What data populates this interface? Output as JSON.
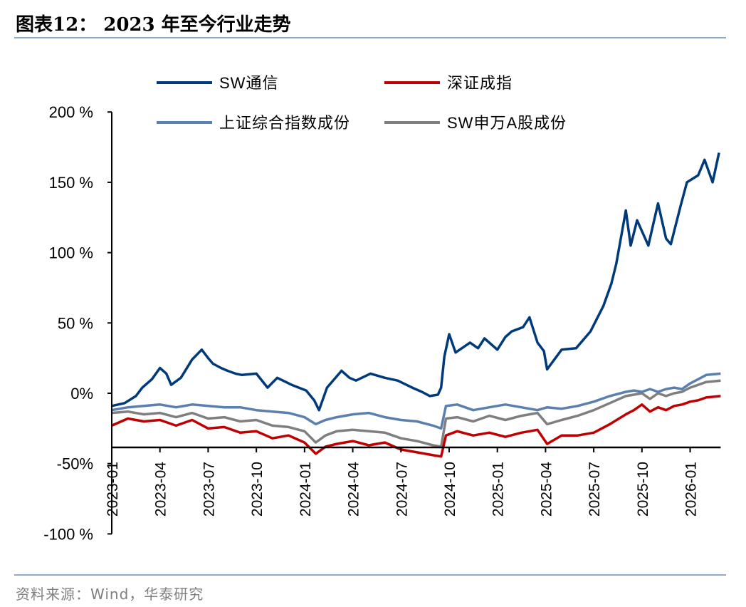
{
  "header": {
    "title": "图表12：  2023 年至今行业走势"
  },
  "footer": {
    "source": "资料来源：Wind，华泰研究"
  },
  "chart_data": {
    "type": "line",
    "title": "2023 年至今行业走势",
    "xlabel": "",
    "ylabel": "",
    "ylim": [
      -100,
      200
    ],
    "x_axis_crosses": -38.5,
    "yticks": [
      200,
      150,
      100,
      50,
      0,
      -50,
      -100
    ],
    "ytick_labels": [
      "200 %",
      "150 %",
      "100 %",
      "50 %",
      "0%",
      "-50%",
      "-100 %"
    ],
    "xticks": [
      0,
      3,
      6,
      9,
      12,
      15,
      18,
      21,
      24,
      27,
      30,
      33,
      36
    ],
    "xtick_labels": [
      "2023-01",
      "2023-04",
      "2023-07",
      "2023-10",
      "2024-01",
      "2024-04",
      "2024-07",
      "2024-10",
      "2025-01",
      "2025-04",
      "2025-07",
      "2025-10",
      "2026-01"
    ],
    "x_unit": "months since 2023-01",
    "xlim": [
      0,
      37.9
    ],
    "legend_position": "top",
    "series": [
      {
        "name": "SW通信",
        "color": "#003A7A",
        "x": [
          0,
          0.8,
          1.5,
          1.9,
          2.5,
          3,
          3.4,
          3.7,
          4.3,
          5,
          5.6,
          6,
          6.3,
          6.8,
          7.2,
          7.7,
          8.1,
          9,
          9.7,
          10.3,
          11.2,
          12.1,
          12.6,
          12.9,
          13.4,
          14.3,
          14.8,
          15.2,
          16.1,
          17,
          17.8,
          18.7,
          19.3,
          19.8,
          20.3,
          20.5,
          20.7,
          21,
          21.4,
          22.3,
          22.8,
          23.2,
          24,
          24.5,
          24.9,
          25.6,
          26,
          26.5,
          26.9,
          27.1,
          28,
          28.9,
          29.8,
          30.6,
          31.1,
          31.4,
          32,
          32.3,
          32.7,
          33.4,
          34,
          34.5,
          34.8,
          35.4,
          35.8,
          36.5,
          36.9,
          37.4,
          37.8
        ],
        "y": [
          -9,
          -7,
          -2,
          4,
          10,
          18,
          14,
          6,
          11,
          24,
          31,
          25,
          21,
          18,
          16,
          14,
          13,
          14,
          4,
          11,
          6,
          2,
          -5,
          -12,
          4,
          16,
          11,
          9,
          14,
          11,
          9,
          4,
          1,
          -2,
          -1,
          4,
          26,
          42,
          29,
          36,
          32,
          39,
          31,
          40,
          44,
          47,
          54,
          36,
          30,
          17,
          31,
          32,
          44,
          62,
          78,
          92,
          130,
          105,
          123,
          105,
          135,
          110,
          106,
          133,
          150,
          155,
          166,
          150,
          171
        ]
      },
      {
        "name": "深证成指",
        "color": "#C00000",
        "x": [
          0,
          1,
          2,
          3,
          4,
          5,
          6,
          7,
          8,
          9,
          10,
          11,
          12,
          12.7,
          13.3,
          14,
          15,
          16,
          17,
          18,
          19,
          20,
          20.5,
          20.8,
          21.5,
          22.5,
          23.5,
          24.5,
          25.5,
          26.5,
          27.1,
          28,
          29,
          30,
          31,
          32,
          32.5,
          33,
          33.5,
          34,
          34.5,
          35,
          35.5,
          36,
          36.5,
          37,
          37.9
        ],
        "y": [
          -23,
          -18,
          -20,
          -19,
          -23,
          -19,
          -25,
          -24,
          -28,
          -27,
          -32,
          -30,
          -35,
          -43,
          -38,
          -36,
          -34,
          -37,
          -35,
          -40,
          -42,
          -44,
          -45,
          -30,
          -27,
          -30,
          -28,
          -31,
          -28,
          -26,
          -36,
          -30,
          -30,
          -28,
          -22,
          -15,
          -12,
          -8,
          -13,
          -10,
          -12,
          -9,
          -8,
          -6,
          -5,
          -3,
          -2
        ]
      },
      {
        "name": "上证综合指数成份",
        "color": "#5B7FAE",
        "x": [
          0,
          1,
          2,
          3,
          4,
          5,
          6,
          7,
          8,
          9,
          10,
          11,
          12,
          12.7,
          13.3,
          14,
          15,
          16,
          17,
          18,
          19,
          20,
          20.5,
          20.8,
          21.5,
          22.5,
          23.5,
          24.5,
          25.5,
          26.5,
          27.1,
          28,
          29,
          30,
          31,
          32,
          32.5,
          33,
          33.5,
          34,
          34.5,
          35,
          35.5,
          36,
          36.5,
          37,
          37.9
        ],
        "y": [
          -12,
          -10,
          -9,
          -8,
          -10,
          -8,
          -9,
          -10,
          -10,
          -12,
          -13,
          -14,
          -17,
          -22,
          -19,
          -17,
          -15,
          -14,
          -17,
          -19,
          -20,
          -23,
          -25,
          -9,
          -8,
          -12,
          -10,
          -8,
          -10,
          -12,
          -10,
          -11,
          -9,
          -6,
          -2,
          1,
          2,
          1,
          3,
          1,
          3,
          4,
          3,
          7,
          10,
          13,
          14
        ]
      },
      {
        "name": "SW申万A股成份",
        "color": "#7F7F7F",
        "x": [
          0,
          1,
          2,
          3,
          4,
          5,
          6,
          7,
          8,
          9,
          10,
          11,
          12,
          12.7,
          13.3,
          14,
          15,
          16,
          17,
          18,
          19,
          20,
          20.5,
          20.8,
          21.5,
          22.5,
          23.5,
          24.5,
          25.5,
          26.5,
          27.1,
          28,
          29,
          30,
          31,
          32,
          32.5,
          33,
          33.5,
          34,
          34.5,
          35,
          35.5,
          36,
          36.5,
          37,
          37.9
        ],
        "y": [
          -14,
          -13,
          -15,
          -14,
          -17,
          -14,
          -18,
          -17,
          -20,
          -19,
          -23,
          -24,
          -27,
          -35,
          -30,
          -27,
          -26,
          -27,
          -28,
          -32,
          -34,
          -37,
          -38,
          -18,
          -17,
          -20,
          -16,
          -19,
          -16,
          -14,
          -22,
          -19,
          -16,
          -12,
          -7,
          -2,
          -1,
          0,
          -4,
          0,
          -2,
          0,
          1,
          4,
          6,
          8,
          9
        ]
      }
    ]
  }
}
